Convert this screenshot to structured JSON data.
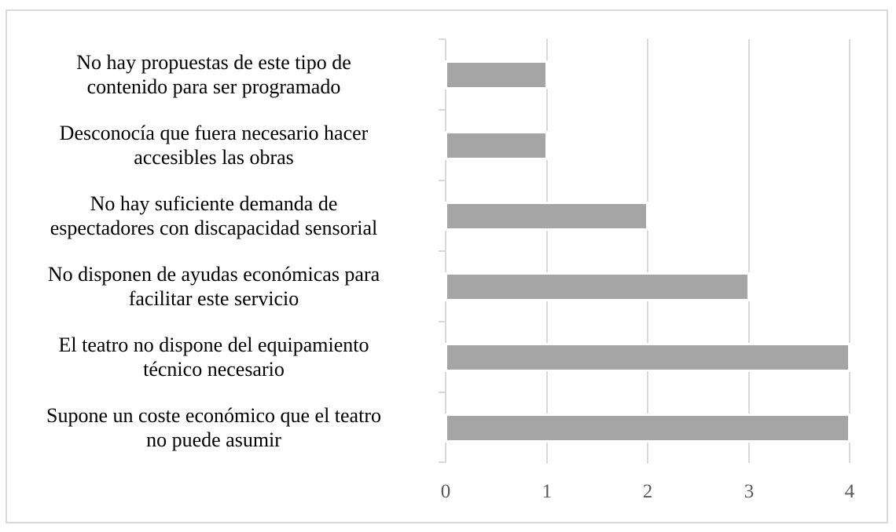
{
  "chart_data": {
    "type": "bar",
    "orientation": "horizontal",
    "title": "",
    "xlabel": "",
    "ylabel": "",
    "categories": [
      "No hay propuestas de este tipo de contenido para ser programado",
      "Desconocía que fuera necesario hacer accesibles las obras",
      "No hay suficiente demanda de espectadores con discapacidad sensorial",
      "No disponen de ayudas económicas para facilitar este servicio",
      "El teatro no dispone del equipamiento técnico necesario",
      "Supone un coste económico que el teatro no puede asumir"
    ],
    "values": [
      1,
      1,
      2,
      3,
      4,
      4
    ],
    "xlim": [
      0,
      4
    ],
    "xticks": [
      "0",
      "1",
      "2",
      "3",
      "4"
    ],
    "grid": "vertical",
    "legend": "none",
    "bar_color": "#a5a5a5",
    "grid_color": "#d9d9d9"
  },
  "labels": [
    {
      "line1": "No hay propuestas de este tipo de",
      "line2": "contenido para ser programado"
    },
    {
      "line1": "Desconocía que fuera necesario hacer",
      "line2": "accesibles las obras"
    },
    {
      "line1": "No hay suficiente demanda de",
      "line2": "espectadores con discapacidad sensorial"
    },
    {
      "line1": "No disponen de ayudas económicas para",
      "line2": "facilitar este servicio"
    },
    {
      "line1": "El teatro no dispone del equipamiento",
      "line2": "técnico necesario"
    },
    {
      "line1": "Supone un coste económico que el teatro",
      "line2": "no puede asumir"
    }
  ],
  "ticks": [
    "0",
    "1",
    "2",
    "3",
    "4"
  ]
}
